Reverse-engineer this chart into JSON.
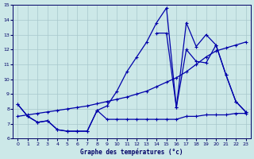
{
  "title": "Graphe des températures (°c)",
  "bg_color": "#cce8e8",
  "grid_color": "#a8c8cc",
  "line_color": "#0000aa",
  "xlim": [
    -0.5,
    23.5
  ],
  "ylim": [
    6,
    15
  ],
  "yticks": [
    6,
    7,
    8,
    9,
    10,
    11,
    12,
    13,
    14,
    15
  ],
  "xticks": [
    0,
    1,
    2,
    3,
    4,
    5,
    6,
    7,
    8,
    9,
    10,
    11,
    12,
    13,
    14,
    15,
    16,
    17,
    18,
    19,
    20,
    21,
    22,
    23
  ],
  "series1_x": [
    0,
    1,
    2,
    3,
    4,
    5,
    6,
    7,
    8,
    9,
    10,
    11,
    12,
    13,
    14,
    15,
    16,
    17,
    18,
    19,
    20,
    21,
    22,
    23
  ],
  "series1_y": [
    8.3,
    7.5,
    7.1,
    7.2,
    6.6,
    6.5,
    6.5,
    6.5,
    7.9,
    7.3,
    7.3,
    7.3,
    7.3,
    7.3,
    7.3,
    7.3,
    7.3,
    7.5,
    7.5,
    7.6,
    7.6,
    7.6,
    7.7,
    7.7
  ],
  "series2_x": [
    0,
    1,
    2,
    3,
    4,
    5,
    6,
    7,
    8,
    9,
    10,
    11,
    12,
    13,
    14,
    15,
    16,
    17,
    18,
    19,
    20,
    21,
    22,
    23
  ],
  "series2_y": [
    8.3,
    7.5,
    7.1,
    7.2,
    6.6,
    6.5,
    6.5,
    6.5,
    7.9,
    8.2,
    9.2,
    10.5,
    11.5,
    12.5,
    13.8,
    14.8,
    8.1,
    12.0,
    11.2,
    11.1,
    12.3,
    10.3,
    8.5,
    7.8
  ],
  "series3_x": [
    0,
    1,
    2,
    3,
    4,
    5,
    6,
    7,
    8,
    9,
    10,
    11,
    12,
    13,
    14,
    15,
    16,
    17,
    18,
    19,
    20,
    21,
    22,
    23
  ],
  "series3_y": [
    7.5,
    7.6,
    7.7,
    7.8,
    7.9,
    8.0,
    8.1,
    8.2,
    8.35,
    8.5,
    8.65,
    8.8,
    9.0,
    9.2,
    9.5,
    9.8,
    10.1,
    10.5,
    11.0,
    11.5,
    11.9,
    12.1,
    12.3,
    12.5
  ],
  "series4_x": [
    14,
    15,
    16,
    17,
    18,
    19,
    20,
    21,
    22,
    23
  ],
  "series4_y": [
    13.1,
    13.1,
    8.1,
    13.8,
    12.2,
    13.0,
    12.3,
    10.3,
    8.5,
    7.8
  ]
}
